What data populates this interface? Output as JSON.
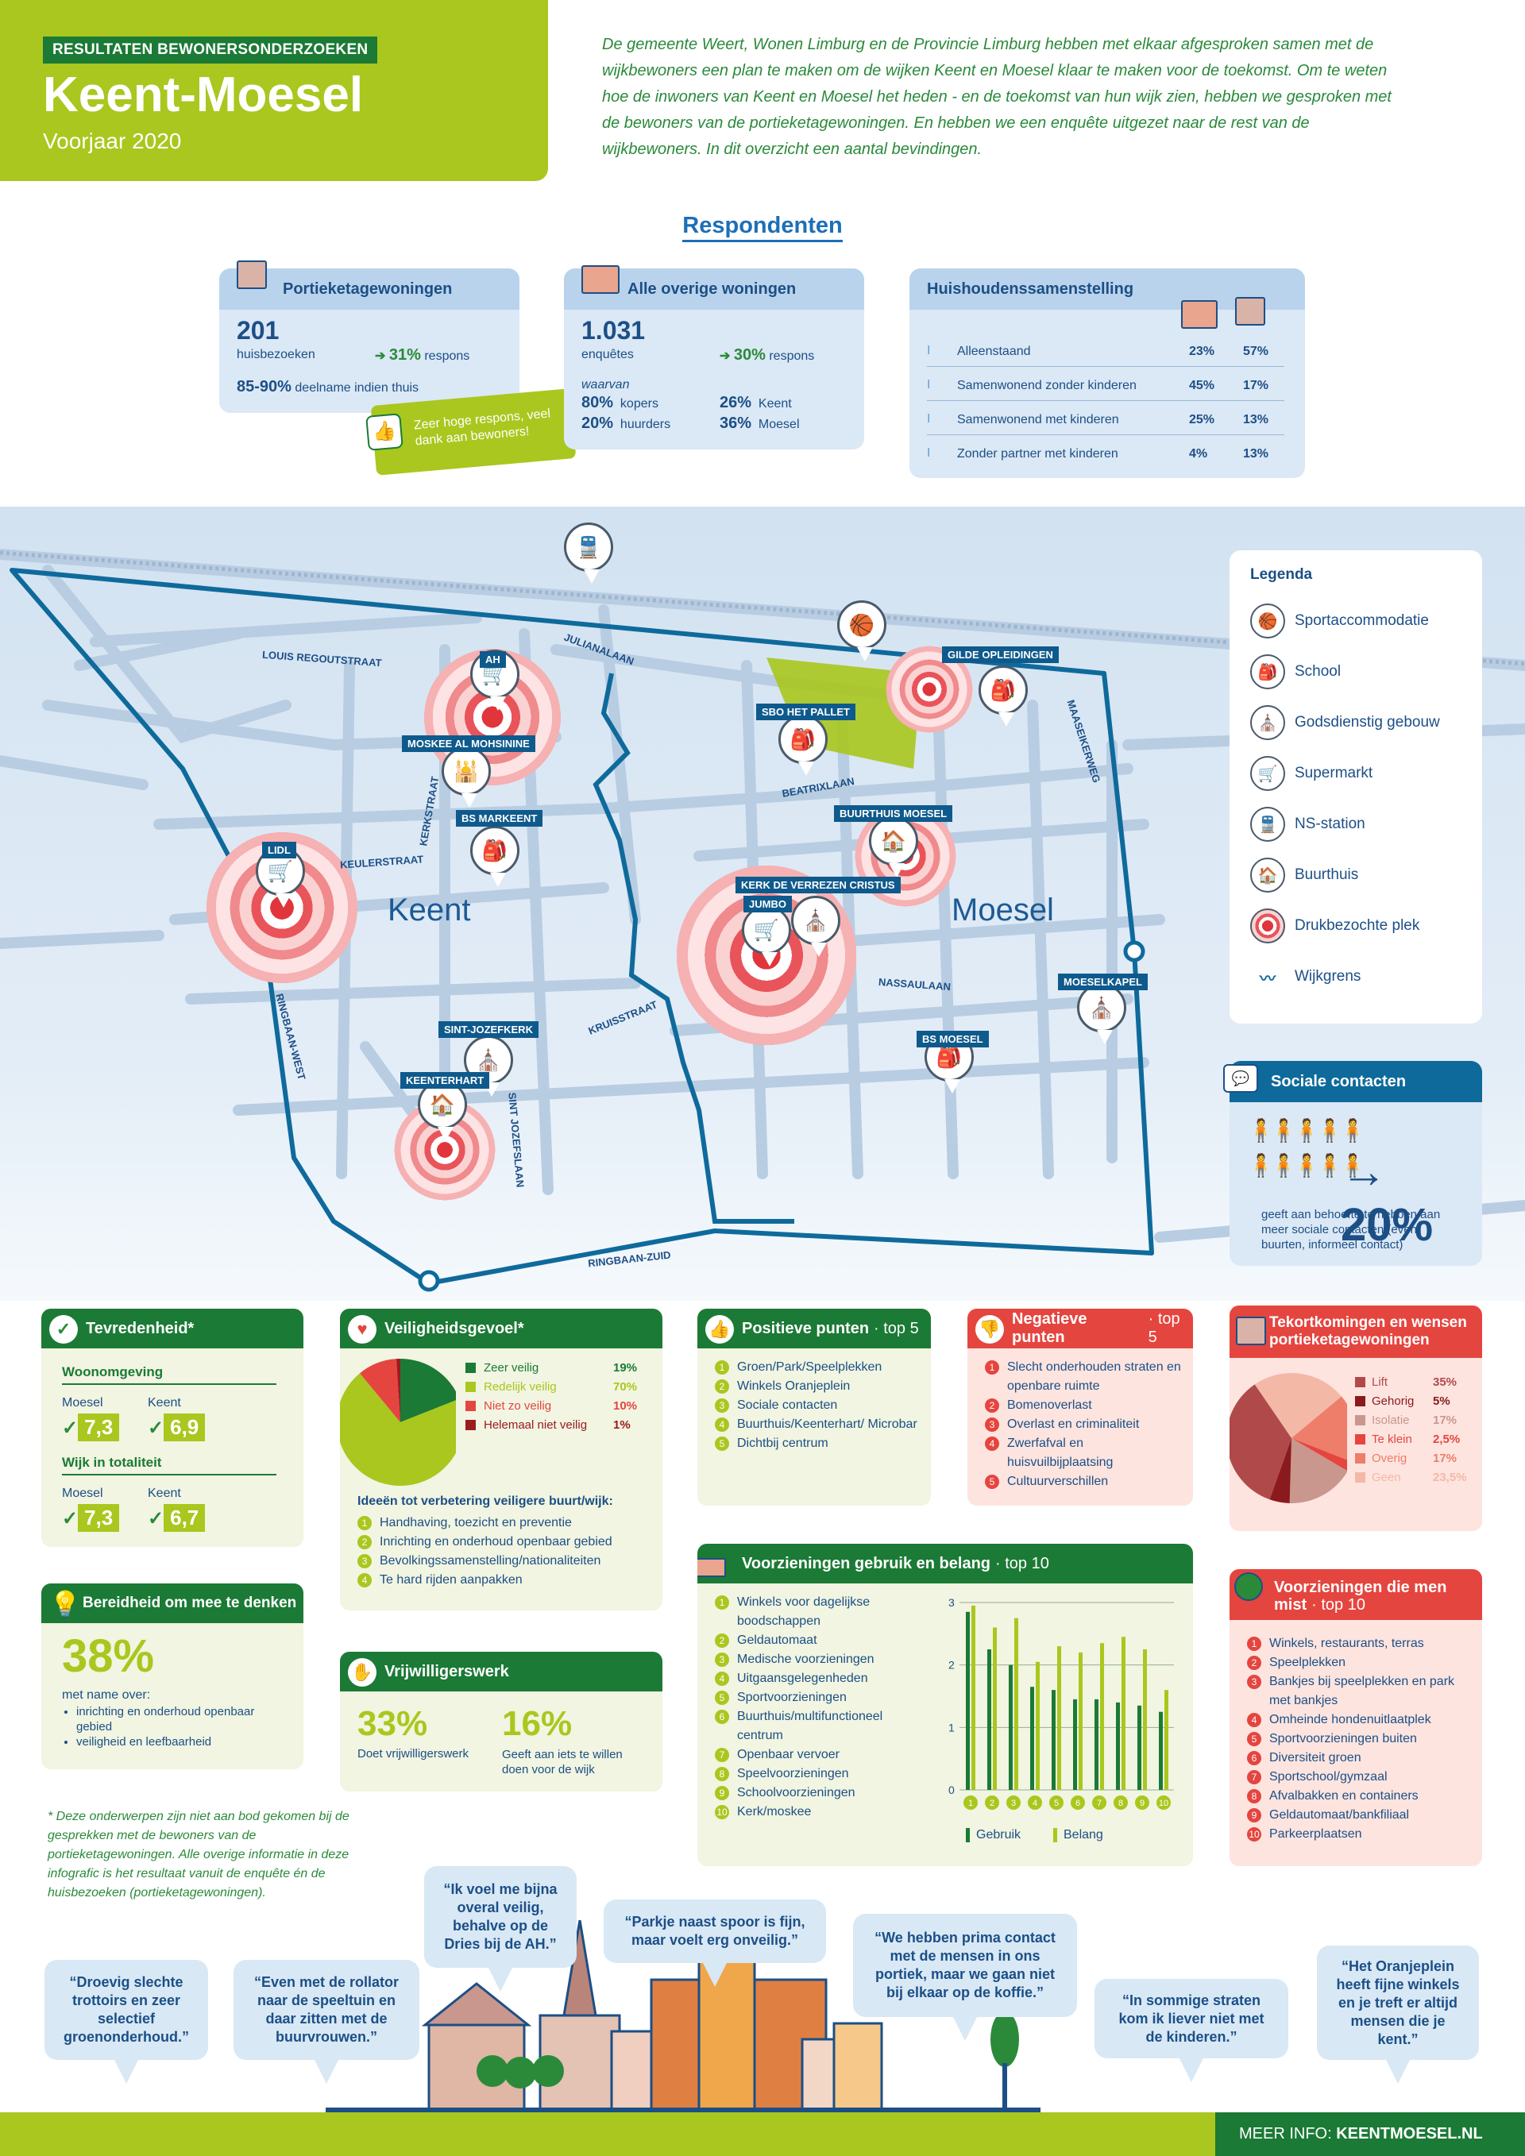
{
  "hero": {
    "tag": "RESULTATEN BEWONERSONDERZOEKEN",
    "title": "Keent-Moesel",
    "subtitle": "Voorjaar 2020"
  },
  "intro": "De gemeente Weert, Wonen Limburg en de Provincie Limburg hebben met elkaar afgesproken samen met de wijkbewoners een plan te maken om de wijken Keent en Moesel klaar te maken voor de toekomst. Om te weten hoe de inwoners van Keent en Moesel het heden - en de toekomst van hun wijk zien, hebben we gesproken met de bewoners van de portieketagewoningen. En hebben we een enquête uitgezet naar de rest van de wijkbewoners. In dit overzicht een aantal bevindingen.",
  "respondenten": {
    "title": "Respondenten",
    "portiek": {
      "title": "Portieketagewoningen",
      "count": "201",
      "count_label": "huisbezoeken",
      "respons_pct": "31%",
      "respons_label": "respons",
      "deelname": "85-90%",
      "deelname_label": "deelname indien thuis",
      "badge": "Zeer hoge respons, veel dank aan bewoners!"
    },
    "overig": {
      "title": "Alle overige woningen",
      "count": "1.031",
      "count_label": "enquêtes",
      "respons_pct": "30%",
      "respons_label": "respons",
      "waarvan": "waarvan",
      "kopers_pct": "80%",
      "kopers": "kopers",
      "huurders_pct": "20%",
      "huurders": "huurders",
      "keent_pct": "26%",
      "keent": "Keent",
      "moesel_pct": "36%",
      "moesel": "Moesel"
    },
    "huishouden": {
      "title": "Huishoudenssamenstelling",
      "rows": [
        {
          "label": "Alleenstaand",
          "a": "23%",
          "b": "57%"
        },
        {
          "label": "Samenwonend zonder kinderen",
          "a": "45%",
          "b": "17%"
        },
        {
          "label": "Samenwonend met kinderen",
          "a": "25%",
          "b": "13%"
        },
        {
          "label": "Zonder partner met kinderen",
          "a": "4%",
          "b": "13%"
        }
      ]
    }
  },
  "map": {
    "areas": {
      "keent": "Keent",
      "moesel": "Moesel"
    },
    "places": [
      "AH",
      "MOSKEE AL MOHSININE",
      "BS MARKEENT",
      "LIDL",
      "SINT-JOZEFKERK",
      "KEENTERHART",
      "SBO HET PALLET",
      "GILDE OPLEIDINGEN",
      "BUURTHUIS MOESEL",
      "KERK DE VERREZEN CRISTUS",
      "JUMBO",
      "MOESELKAPEL",
      "BS MOESEL"
    ],
    "streets": [
      "LOUIS REGOUTSTRAAT",
      "JULIANALAAN",
      "KERKSTRAAT",
      "KEULERSTRAAT",
      "RINGBAAN-WEST",
      "KRUISSTRAAT",
      "SINT JOZEFSLAAN",
      "BEATRIXLAAN",
      "NASSAULAAN",
      "MAASEIKERWEG",
      "RINGBAAN-ZUID"
    ]
  },
  "legend": {
    "title": "Legenda",
    "items": [
      {
        "label": "Sportaccommodatie",
        "icon": "🏀"
      },
      {
        "label": "School",
        "icon": "🎒"
      },
      {
        "label": "Godsdienstig gebouw",
        "icon": "⛪"
      },
      {
        "label": "Supermarkt",
        "icon": "🛒"
      },
      {
        "label": "NS-station",
        "icon": "🚆"
      },
      {
        "label": "Buurthuis",
        "icon": "🏠"
      },
      {
        "label": "Drukbezochte plek",
        "icon": "◎"
      },
      {
        "label": "Wijkgrens",
        "icon": "〰"
      }
    ]
  },
  "sociaal": {
    "title": "Sociale contacten",
    "pct": "20%",
    "text": "geeft aan behoefte te hebben aan meer sociale contacten (even buurten, informeel contact)"
  },
  "tevredenheid": {
    "title": "Tevredenheid*",
    "woon": "Woonomgeving",
    "totaal": "Wijk in totaliteit",
    "moesel": "Moesel",
    "keent": "Keent",
    "woon_moesel": "7,3",
    "woon_keent": "6,9",
    "tot_moesel": "7,3",
    "tot_keent": "6,7"
  },
  "veiligheid": {
    "title": "Veiligheidsgevoel*",
    "items": [
      {
        "label": "Zeer veilig",
        "pct": "19%",
        "value": 19,
        "color": "#1b7a35"
      },
      {
        "label": "Redelijk veilig",
        "pct": "70%",
        "value": 70,
        "color": "#a9c71e"
      },
      {
        "label": "Niet zo veilig",
        "pct": "10%",
        "value": 10,
        "color": "#e5453f"
      },
      {
        "label": "Helemaal niet veilig",
        "pct": "1%",
        "value": 1,
        "color": "#9b1b20"
      }
    ],
    "ideeen_title": "Ideeën tot verbetering veiligere buurt/wijk:",
    "ideeen": [
      "Handhaving, toezicht en preventie",
      "Inrichting en onderhoud openbaar gebied",
      "Bevolkingssamenstelling/nationaliteiten",
      "Te hard rijden aanpakken"
    ]
  },
  "positief": {
    "title": "Positieve punten",
    "top": "· top 5",
    "items": [
      "Groen/Park/Speelplekken",
      "Winkels Oranjeplein",
      "Sociale contacten",
      "Buurthuis/Keenterhart/ Microbar",
      "Dichtbij centrum"
    ]
  },
  "negatief": {
    "title": "Negatieve punten",
    "top": "· top 5",
    "items": [
      "Slecht onderhouden straten en openbare ruimte",
      "Bomenoverlast",
      "Overlast en criminaliteit",
      "Zwerfafval en huisvuilbijplaatsing",
      "Cultuurverschillen"
    ]
  },
  "tekort": {
    "title": "Tekortkomingen en wensen portieketagewoningen",
    "items": [
      {
        "label": "Lift",
        "pct": "35%",
        "value": 35,
        "color": "#b04a4a"
      },
      {
        "label": "Gehorig",
        "pct": "5%",
        "value": 5,
        "color": "#8a1a1e"
      },
      {
        "label": "Isolatie",
        "pct": "17%",
        "value": 17,
        "color": "#c9978d"
      },
      {
        "label": "Te klein",
        "pct": "2,5%",
        "value": 2.5,
        "color": "#e5453f"
      },
      {
        "label": "Overig",
        "pct": "17%",
        "value": 17,
        "color": "#ee7d6a"
      },
      {
        "label": "Geen",
        "pct": "23,5%",
        "value": 23.5,
        "color": "#f4b8a7"
      }
    ]
  },
  "bereidheid": {
    "title": "Bereidheid om mee te denken",
    "pct": "38%",
    "label": "met name over:",
    "items": [
      "inrichting en onderhoud openbaar gebied",
      "veiligheid en leefbaarheid"
    ]
  },
  "vrijwilliger": {
    "title": "Vrijwilligerswerk",
    "a_pct": "33%",
    "a_label": "Doet vrijwilligerswerk",
    "b_pct": "16%",
    "b_label": "Geeft aan iets te willen doen voor de wijk"
  },
  "voorzieningen": {
    "title": "Voorzieningen gebruik en belang",
    "top": "· top 10",
    "items": [
      "Winkels voor dagelijkse boodschappen",
      "Geldautomaat",
      "Medische voorzieningen",
      "Uitgaansgelegenheden",
      "Sportvoorzieningen",
      "Buurthuis/multifunctioneel centrum",
      "Openbaar vervoer",
      "Speelvoorzieningen",
      "Schoolvoorzieningen",
      "Kerk/moskee"
    ],
    "legend_gebruik": "Gebruik",
    "legend_belang": "Belang"
  },
  "chart_data": {
    "type": "bar",
    "categories": [
      "1",
      "2",
      "3",
      "4",
      "5",
      "6",
      "7",
      "8",
      "9",
      "10"
    ],
    "series": [
      {
        "name": "Gebruik",
        "values": [
          2.85,
          2.25,
          2.0,
          1.65,
          1.6,
          1.45,
          1.45,
          1.4,
          1.35,
          1.25
        ],
        "color": "#1b7a35"
      },
      {
        "name": "Belang",
        "values": [
          2.95,
          2.6,
          2.75,
          2.05,
          2.3,
          2.2,
          2.35,
          2.45,
          2.25,
          1.6
        ],
        "color": "#a9c71e"
      }
    ],
    "ylim": [
      0,
      3
    ],
    "yticks": [
      "0",
      "1",
      "2",
      "3"
    ]
  },
  "mist": {
    "title": "Voorzieningen die men mist",
    "top": "· top 10",
    "items": [
      "Winkels, restaurants, terras",
      "Speelplekken",
      "Bankjes bij speelplekken en park met bankjes",
      "Omheinde hondenuitlaatplek",
      "Sportvoorzieningen buiten",
      "Diversiteit groen",
      "Sportschool/gymzaal",
      "Afvalbakken en containers",
      "Geldautomaat/bankfiliaal",
      "Parkeerplaatsen"
    ]
  },
  "footnote": "* Deze onderwerpen zijn niet aan bod gekomen bij de gesprekken met de bewoners van de portieketagewoningen. Alle overige informatie in deze infografic is het resultaat vanuit de enquête én de huisbezoeken (portieketagewoningen).",
  "quotes": [
    "“Droevig slechte trottoirs en zeer selectief groenonderhoud.”",
    "“Even met de rollator naar de speeltuin en daar zitten met de buurvrouwen.”",
    "“Ik voel me bijna overal veilig, behalve op de Dries bij de AH.”",
    "“Parkje naast spoor is fijn, maar voelt erg onveilig.”",
    "“We hebben prima contact met de mensen in ons portiek, maar we gaan niet bij elkaar op de koffie.”",
    "“In sommige straten kom ik liever niet met de kinderen.”",
    "“Het Oranjeplein heeft fijne winkels en je treft er altijd mensen die je kent.”"
  ],
  "footer": {
    "label": "MEER INFO:",
    "site": "KEENTMOESEL.NL"
  }
}
